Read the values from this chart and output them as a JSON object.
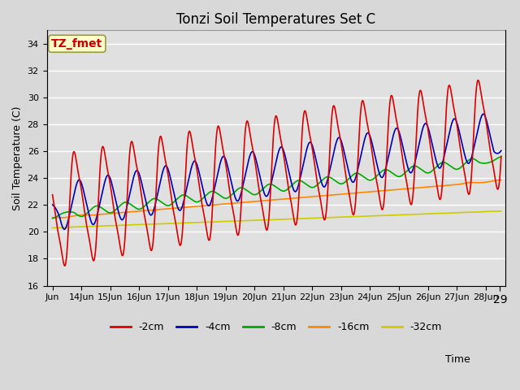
{
  "title": "Tonzi Soil Temperatures Set C",
  "xlabel": "Time",
  "ylabel": "Soil Temperature (C)",
  "ylim": [
    16,
    35
  ],
  "yticks": [
    16,
    18,
    20,
    22,
    24,
    26,
    28,
    30,
    32,
    34
  ],
  "series_colors": [
    "#dd0000",
    "#0000bb",
    "#00aa00",
    "#ff8800",
    "#cccc00"
  ],
  "series_labels": [
    "-2cm",
    "-4cm",
    "-8cm",
    "-16cm",
    "-32cm"
  ],
  "annotation_text": "TZ_fmet",
  "annotation_color": "#cc0000",
  "annotation_bg": "#ffffcc",
  "annotation_border": "#999944",
  "fig_bg": "#d8d8d8",
  "plot_bg": "#e0e0e0",
  "grid_color": "#ffffff",
  "title_fontsize": 12,
  "label_fontsize": 9,
  "tick_fontsize": 8,
  "legend_fontsize": 9,
  "line_width": 1.2
}
